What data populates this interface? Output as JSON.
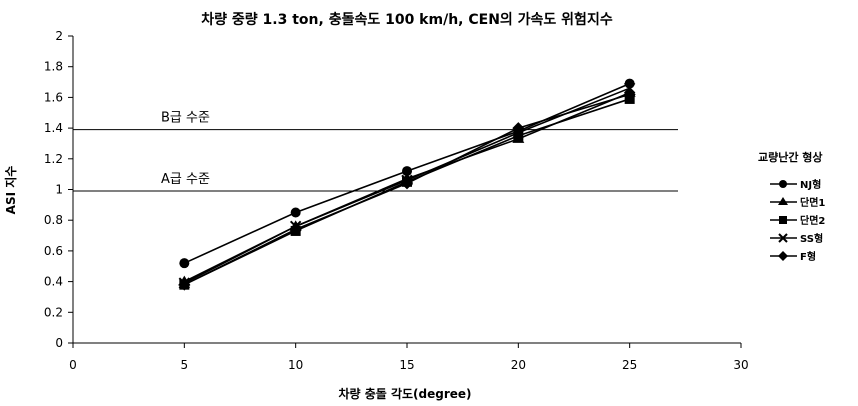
{
  "chart_data": {
    "type": "line",
    "title": "차량 중량 1.3 ton, 충돌속도 100 km/h, CEN의 가속도 위험지수",
    "xlabel": "차량 충돌 각도(degree)",
    "ylabel": "ASI 지수",
    "xlim": [
      0,
      30
    ],
    "ylim": [
      0,
      2
    ],
    "x_ticks": [
      "0",
      "5",
      "10",
      "15",
      "20",
      "25",
      "30"
    ],
    "y_ticks": [
      "0",
      "0.2",
      "0.4",
      "0.6",
      "0.8",
      "1",
      "1.2",
      "1.4",
      "1.6",
      "1.8",
      "2"
    ],
    "grid": false,
    "legend_title": "교량난간 형상",
    "legend_placement": "right",
    "x": [
      5,
      10,
      15,
      20,
      25
    ],
    "series": [
      {
        "name": "NJ형",
        "marker": "circle",
        "values": [
          0.52,
          0.85,
          1.12,
          1.38,
          1.69
        ]
      },
      {
        "name": "단면1",
        "marker": "triangle",
        "values": [
          0.4,
          0.76,
          1.07,
          1.33,
          1.63
        ]
      },
      {
        "name": "단면2",
        "marker": "square",
        "values": [
          0.38,
          0.73,
          1.05,
          1.35,
          1.59
        ]
      },
      {
        "name": "SS형",
        "marker": "x",
        "values": [
          0.39,
          0.76,
          1.06,
          1.37,
          1.66
        ]
      },
      {
        "name": "F형",
        "marker": "diamond",
        "values": [
          0.38,
          0.74,
          1.04,
          1.4,
          1.62
        ]
      }
    ],
    "reference_lines": [
      {
        "label": "B급 수준",
        "value": 1.39
      },
      {
        "label": "A급 수준",
        "value": 0.99
      }
    ],
    "colors": {
      "line": "#000000",
      "background": "#ffffff"
    }
  }
}
